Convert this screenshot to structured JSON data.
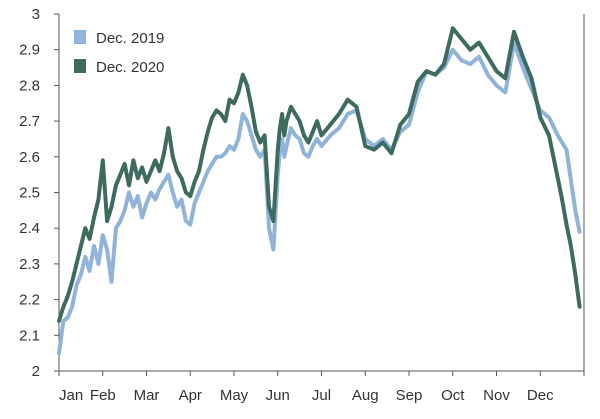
{
  "chart_data": {
    "type": "line",
    "title": "",
    "xlabel": "",
    "ylabel": "",
    "x_months": [
      "Jan",
      "Feb",
      "Mar",
      "Apr",
      "May",
      "Jun",
      "Jul",
      "Aug",
      "Sep",
      "Oct",
      "Nov",
      "Dec"
    ],
    "y_ticks": [
      "2",
      "2.1",
      "2.2",
      "2.3",
      "2.4",
      "2.5",
      "2.6",
      "2.7",
      "2.8",
      "2.9",
      "3"
    ],
    "ylim": [
      2,
      3
    ],
    "xlim": [
      0,
      12
    ],
    "grid": false,
    "legend_position": "top-left",
    "series": [
      {
        "name": "Dec. 2019",
        "color": "#8fb3d9",
        "x": [
          0.0,
          0.1,
          0.2,
          0.3,
          0.4,
          0.5,
          0.6,
          0.7,
          0.8,
          0.9,
          1.0,
          1.1,
          1.2,
          1.3,
          1.4,
          1.5,
          1.6,
          1.7,
          1.8,
          1.9,
          2.0,
          2.1,
          2.2,
          2.3,
          2.4,
          2.5,
          2.6,
          2.7,
          2.8,
          2.9,
          3.0,
          3.1,
          3.2,
          3.3,
          3.4,
          3.5,
          3.6,
          3.7,
          3.8,
          3.9,
          4.0,
          4.1,
          4.2,
          4.3,
          4.4,
          4.5,
          4.6,
          4.7,
          4.8,
          4.9,
          5.0,
          5.05,
          5.1,
          5.15,
          5.2,
          5.3,
          5.4,
          5.5,
          5.6,
          5.7,
          5.8,
          5.9,
          6.0,
          6.2,
          6.4,
          6.6,
          6.8,
          7.0,
          7.2,
          7.4,
          7.6,
          7.8,
          8.0,
          8.2,
          8.4,
          8.6,
          8.8,
          9.0,
          9.2,
          9.4,
          9.6,
          9.8,
          10.0,
          10.2,
          10.4,
          10.6,
          10.8,
          11.0,
          11.2,
          11.4,
          11.6,
          11.8,
          11.9
        ],
        "values": [
          2.05,
          2.14,
          2.15,
          2.18,
          2.24,
          2.27,
          2.32,
          2.28,
          2.35,
          2.3,
          2.38,
          2.34,
          2.25,
          2.4,
          2.42,
          2.45,
          2.5,
          2.46,
          2.49,
          2.43,
          2.47,
          2.5,
          2.48,
          2.51,
          2.53,
          2.55,
          2.5,
          2.46,
          2.48,
          2.42,
          2.41,
          2.47,
          2.5,
          2.53,
          2.56,
          2.58,
          2.6,
          2.6,
          2.61,
          2.63,
          2.62,
          2.65,
          2.72,
          2.7,
          2.66,
          2.62,
          2.6,
          2.62,
          2.4,
          2.34,
          2.55,
          2.62,
          2.65,
          2.6,
          2.63,
          2.68,
          2.66,
          2.65,
          2.61,
          2.6,
          2.63,
          2.65,
          2.63,
          2.66,
          2.68,
          2.72,
          2.73,
          2.65,
          2.63,
          2.65,
          2.62,
          2.67,
          2.69,
          2.78,
          2.84,
          2.83,
          2.85,
          2.9,
          2.87,
          2.86,
          2.88,
          2.83,
          2.8,
          2.78,
          2.92,
          2.85,
          2.79,
          2.73,
          2.71,
          2.66,
          2.62,
          2.45,
          2.39
        ]
      },
      {
        "name": "Dec. 2020",
        "color": "#3d6b5f",
        "x": [
          0.0,
          0.1,
          0.2,
          0.3,
          0.4,
          0.5,
          0.6,
          0.7,
          0.8,
          0.9,
          1.0,
          1.1,
          1.2,
          1.3,
          1.4,
          1.5,
          1.6,
          1.7,
          1.8,
          1.9,
          2.0,
          2.1,
          2.2,
          2.3,
          2.4,
          2.5,
          2.6,
          2.7,
          2.8,
          2.9,
          3.0,
          3.1,
          3.2,
          3.3,
          3.4,
          3.5,
          3.6,
          3.7,
          3.8,
          3.9,
          4.0,
          4.1,
          4.2,
          4.3,
          4.4,
          4.5,
          4.6,
          4.7,
          4.8,
          4.9,
          5.0,
          5.05,
          5.1,
          5.15,
          5.2,
          5.3,
          5.4,
          5.5,
          5.6,
          5.7,
          5.8,
          5.9,
          6.0,
          6.2,
          6.4,
          6.6,
          6.8,
          7.0,
          7.2,
          7.4,
          7.6,
          7.8,
          8.0,
          8.2,
          8.4,
          8.6,
          8.8,
          9.0,
          9.2,
          9.4,
          9.6,
          9.8,
          10.0,
          10.2,
          10.4,
          10.6,
          10.8,
          11.0,
          11.2,
          11.3,
          11.4,
          11.5,
          11.6,
          11.7,
          11.8,
          11.9
        ],
        "values": [
          2.14,
          2.18,
          2.21,
          2.25,
          2.3,
          2.35,
          2.4,
          2.37,
          2.43,
          2.48,
          2.59,
          2.42,
          2.46,
          2.52,
          2.55,
          2.58,
          2.52,
          2.59,
          2.54,
          2.57,
          2.53,
          2.56,
          2.59,
          2.56,
          2.61,
          2.68,
          2.6,
          2.56,
          2.54,
          2.5,
          2.49,
          2.53,
          2.56,
          2.62,
          2.67,
          2.71,
          2.73,
          2.72,
          2.7,
          2.76,
          2.75,
          2.78,
          2.83,
          2.8,
          2.74,
          2.67,
          2.64,
          2.66,
          2.46,
          2.42,
          2.62,
          2.68,
          2.72,
          2.66,
          2.7,
          2.74,
          2.72,
          2.7,
          2.66,
          2.64,
          2.67,
          2.7,
          2.66,
          2.69,
          2.72,
          2.76,
          2.74,
          2.63,
          2.62,
          2.64,
          2.61,
          2.69,
          2.72,
          2.81,
          2.84,
          2.83,
          2.86,
          2.96,
          2.93,
          2.9,
          2.92,
          2.88,
          2.84,
          2.82,
          2.95,
          2.88,
          2.82,
          2.71,
          2.66,
          2.6,
          2.54,
          2.48,
          2.41,
          2.35,
          2.27,
          2.18
        ]
      }
    ]
  }
}
